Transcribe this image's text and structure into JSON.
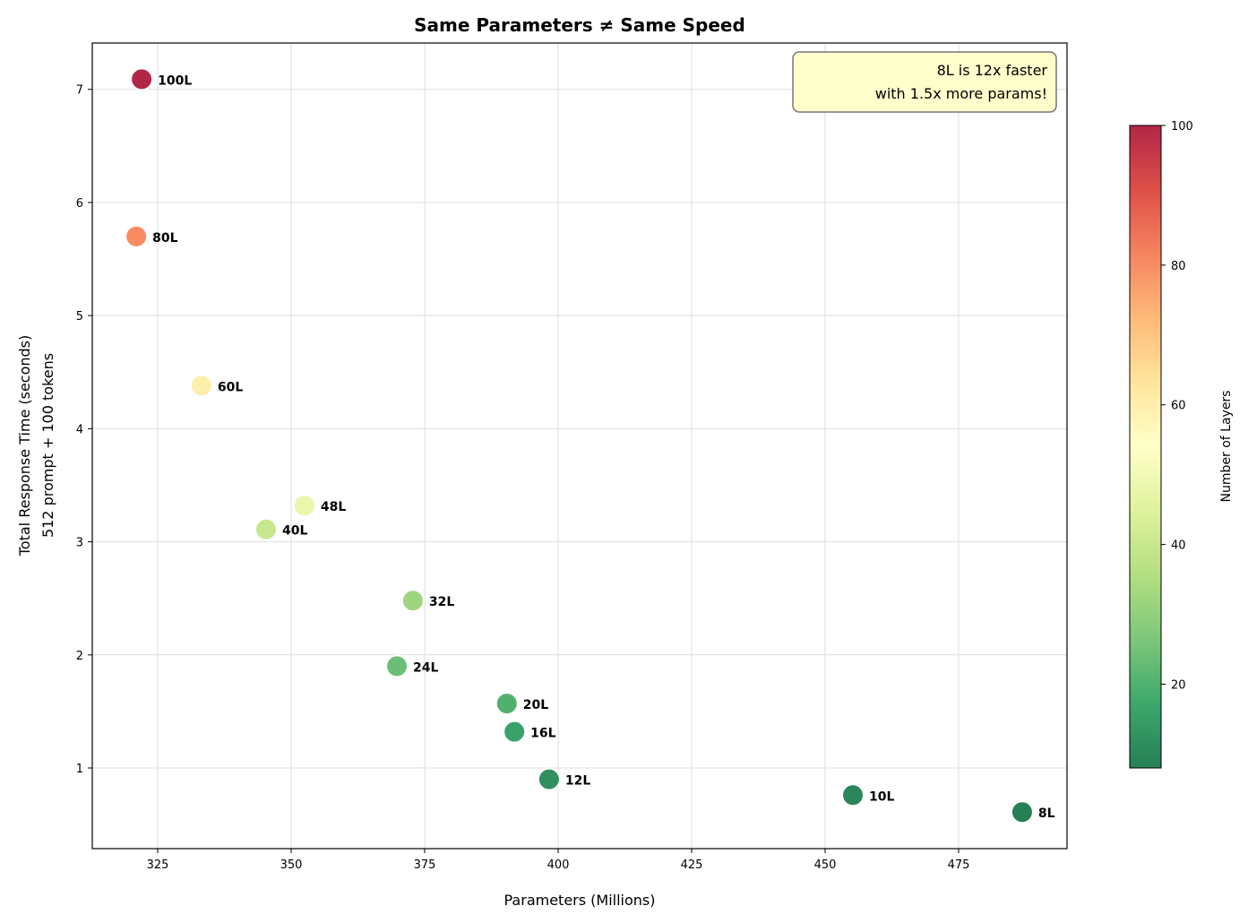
{
  "chart_data": {
    "type": "scatter",
    "title": "Same Parameters ≠ Same Speed",
    "xlabel": "Parameters (Millions)",
    "ylabel": "Total Response Time (seconds)",
    "ylabel2": "512 prompt + 100 tokens",
    "xlim": [
      312.75,
      495.3
    ],
    "ylim": [
      0.287,
      7.41
    ],
    "xticks": [
      325,
      350,
      375,
      400,
      425,
      450,
      475
    ],
    "yticks": [
      1,
      2,
      3,
      4,
      5,
      6,
      7
    ],
    "grid": true,
    "points": [
      {
        "label": "100L",
        "layers": 100,
        "x": 322.0,
        "y": 7.09
      },
      {
        "label": "80L",
        "layers": 80,
        "x": 321.0,
        "y": 5.7
      },
      {
        "label": "60L",
        "layers": 60,
        "x": 333.2,
        "y": 4.38
      },
      {
        "label": "48L",
        "layers": 48,
        "x": 352.5,
        "y": 3.32
      },
      {
        "label": "40L",
        "layers": 40,
        "x": 345.3,
        "y": 3.11
      },
      {
        "label": "32L",
        "layers": 32,
        "x": 372.8,
        "y": 2.48
      },
      {
        "label": "24L",
        "layers": 24,
        "x": 369.8,
        "y": 1.9
      },
      {
        "label": "20L",
        "layers": 20,
        "x": 390.4,
        "y": 1.57
      },
      {
        "label": "16L",
        "layers": 16,
        "x": 391.8,
        "y": 1.32
      },
      {
        "label": "12L",
        "layers": 12,
        "x": 398.3,
        "y": 0.9
      },
      {
        "label": "10L",
        "layers": 10,
        "x": 455.2,
        "y": 0.76
      },
      {
        "label": "8L",
        "layers": 8,
        "x": 486.9,
        "y": 0.61
      }
    ],
    "annotation": [
      "8L is 12x faster",
      "with 1.5x more params!"
    ],
    "annotation_bg": "#ffffcc",
    "colorbar": {
      "label": "Number of Layers",
      "colormap": "RdYlGn_r",
      "range": [
        8,
        100
      ],
      "ticks": [
        20,
        40,
        60,
        80,
        100
      ]
    }
  }
}
